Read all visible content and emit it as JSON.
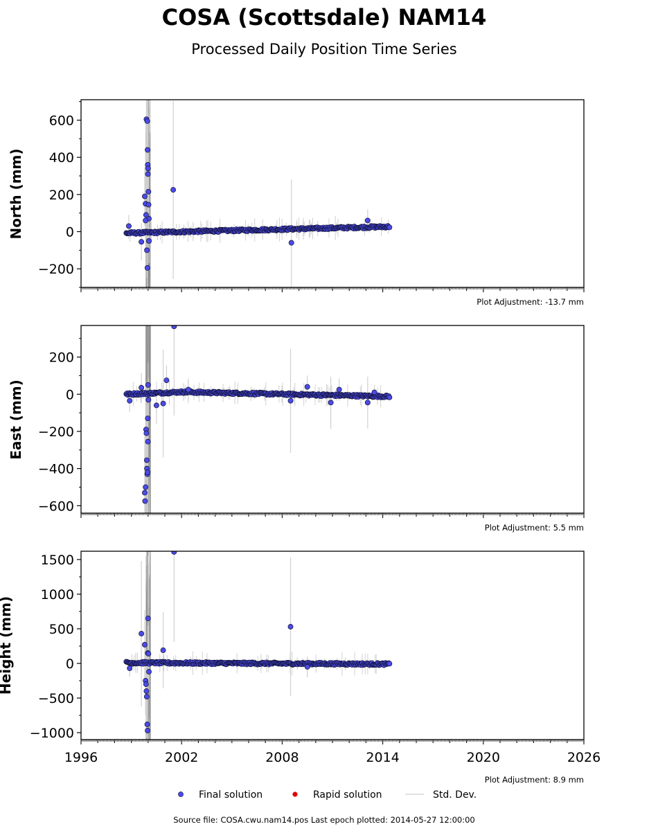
{
  "figure": {
    "title": "COSA (Scottsdale) NAM14",
    "subtitle": "Processed Daily Position Time Series",
    "source_text": "Source file: COSA.cwu.nam14.pos  Last epoch plotted: 2014-05-27 12:00:00"
  },
  "legend": {
    "items": [
      {
        "label": "Final solution",
        "color": "#4b4be8",
        "kind": "point"
      },
      {
        "label": "Rapid solution",
        "color": "#e00000",
        "kind": "point"
      },
      {
        "label": "Std. Dev.",
        "color": "#d6d6d6",
        "kind": "line"
      }
    ]
  },
  "colors": {
    "final": "#4b4be8",
    "final_edge": "#111133",
    "rapid": "#e00000",
    "errorbar": "#d0d0d0",
    "errorbar_dense": "#8a8a8a"
  },
  "chart_data": [
    {
      "type": "scatter",
      "name": "north",
      "ylabel": "North (mm)",
      "adjustment": "Plot Adjustment: -13.7 mm",
      "xlim": [
        1996,
        2026
      ],
      "ylim": [
        -300,
        710
      ],
      "yticks": [
        -200,
        0,
        200,
        400,
        600
      ],
      "trend": {
        "x": [
          1998.7,
          2014.4
        ],
        "y": [
          -8,
          27
        ]
      },
      "outliers": [
        {
          "x": 1999.6,
          "y": -55,
          "err": 100
        },
        {
          "x": 1999.8,
          "y": 190,
          "err": 160
        },
        {
          "x": 1999.85,
          "y": 150,
          "err": 300
        },
        {
          "x": 1999.9,
          "y": 605,
          "err": 400
        },
        {
          "x": 1999.95,
          "y": 595,
          "err": 400
        },
        {
          "x": 1999.97,
          "y": 440,
          "err": 350
        },
        {
          "x": 1999.98,
          "y": 360,
          "err": 300
        },
        {
          "x": 1999.99,
          "y": 310,
          "err": 300
        },
        {
          "x": 2000.0,
          "y": 340,
          "err": 300
        },
        {
          "x": 2000.02,
          "y": 215,
          "err": 250
        },
        {
          "x": 2000.03,
          "y": 145,
          "err": 200
        },
        {
          "x": 2000.05,
          "y": 70,
          "err": 150
        },
        {
          "x": 1999.93,
          "y": -100,
          "err": 150
        },
        {
          "x": 1999.96,
          "y": -195,
          "err": 200
        },
        {
          "x": 2000.05,
          "y": -50,
          "err": 120
        },
        {
          "x": 1999.85,
          "y": 60,
          "err": 100
        },
        {
          "x": 1999.88,
          "y": 90,
          "err": 120
        },
        {
          "x": 1998.85,
          "y": 30,
          "err": 60
        },
        {
          "x": 2001.5,
          "y": 225,
          "err": 480
        },
        {
          "x": 2008.55,
          "y": -60,
          "err": 340
        },
        {
          "x": 2013.1,
          "y": 60,
          "err": 60
        }
      ]
    },
    {
      "type": "scatter",
      "name": "east",
      "ylabel": "East (mm)",
      "adjustment": "Plot Adjustment: 5.5 mm",
      "xlim": [
        1996,
        2026
      ],
      "ylim": [
        -640,
        370
      ],
      "yticks": [
        -600,
        -400,
        -200,
        0,
        200
      ],
      "trend": {
        "x": [
          1998.7,
          2002.0,
          2014.4
        ],
        "y": [
          0,
          12,
          -12
        ]
      },
      "outliers": [
        {
          "x": 1998.9,
          "y": -35,
          "err": 60
        },
        {
          "x": 1999.6,
          "y": 35,
          "err": 80
        },
        {
          "x": 1999.8,
          "y": -530,
          "err": 300
        },
        {
          "x": 1999.82,
          "y": -575,
          "err": 350
        },
        {
          "x": 1999.85,
          "y": -500,
          "err": 300
        },
        {
          "x": 1999.88,
          "y": -190,
          "err": 250
        },
        {
          "x": 1999.9,
          "y": -210,
          "err": 250
        },
        {
          "x": 1999.92,
          "y": -355,
          "err": 300
        },
        {
          "x": 1999.93,
          "y": -400,
          "err": 300
        },
        {
          "x": 1999.95,
          "y": -430,
          "err": 300
        },
        {
          "x": 1999.97,
          "y": -420,
          "err": 300
        },
        {
          "x": 1999.98,
          "y": -130,
          "err": 200
        },
        {
          "x": 1999.99,
          "y": -255,
          "err": 200
        },
        {
          "x": 2000.0,
          "y": 50,
          "err": 120
        },
        {
          "x": 2000.02,
          "y": -30,
          "err": 120
        },
        {
          "x": 2000.5,
          "y": -60,
          "err": 100
        },
        {
          "x": 2000.9,
          "y": -50,
          "err": 290
        },
        {
          "x": 2001.1,
          "y": 75,
          "err": 80
        },
        {
          "x": 2001.55,
          "y": 365,
          "err": 480
        },
        {
          "x": 2002.4,
          "y": 25,
          "err": 60
        },
        {
          "x": 2008.5,
          "y": -35,
          "err": 280
        },
        {
          "x": 2009.5,
          "y": 40,
          "err": 60
        },
        {
          "x": 2010.9,
          "y": -45,
          "err": 140
        },
        {
          "x": 2011.4,
          "y": 25,
          "err": 60
        },
        {
          "x": 2013.1,
          "y": -45,
          "err": 140
        },
        {
          "x": 2013.5,
          "y": 10,
          "err": 40
        }
      ]
    },
    {
      "type": "scatter",
      "name": "height",
      "ylabel": "Height (mm)",
      "adjustment": "Plot Adjustment: 8.9 mm",
      "xlim": [
        1996,
        2026
      ],
      "ylim": [
        -1100,
        1620
      ],
      "yticks": [
        -1000,
        -500,
        0,
        500,
        1000,
        1500
      ],
      "xticks": [
        1996,
        2002,
        2008,
        2014,
        2020,
        2026
      ],
      "trend": {
        "x": [
          1998.7,
          2014.4
        ],
        "y": [
          10,
          -10
        ]
      },
      "outliers": [
        {
          "x": 1998.9,
          "y": -70,
          "err": 120
        },
        {
          "x": 1999.6,
          "y": 430,
          "err": 1050
        },
        {
          "x": 1999.8,
          "y": 270,
          "err": 500
        },
        {
          "x": 1999.85,
          "y": -250,
          "err": 500
        },
        {
          "x": 1999.88,
          "y": -300,
          "err": 500
        },
        {
          "x": 1999.9,
          "y": -400,
          "err": 600
        },
        {
          "x": 1999.92,
          "y": -480,
          "err": 600
        },
        {
          "x": 1999.95,
          "y": -880,
          "err": 800
        },
        {
          "x": 1999.97,
          "y": -970,
          "err": 800
        },
        {
          "x": 1999.98,
          "y": 150,
          "err": 400
        },
        {
          "x": 2000.0,
          "y": 650,
          "err": 900
        },
        {
          "x": 2000.02,
          "y": 140,
          "err": 400
        },
        {
          "x": 2000.05,
          "y": -120,
          "err": 300
        },
        {
          "x": 2000.9,
          "y": 190,
          "err": 550
        },
        {
          "x": 2001.55,
          "y": 1610,
          "err": 1300
        },
        {
          "x": 2008.5,
          "y": 530,
          "err": 1000
        },
        {
          "x": 2009.5,
          "y": -50,
          "err": 150
        }
      ]
    }
  ]
}
